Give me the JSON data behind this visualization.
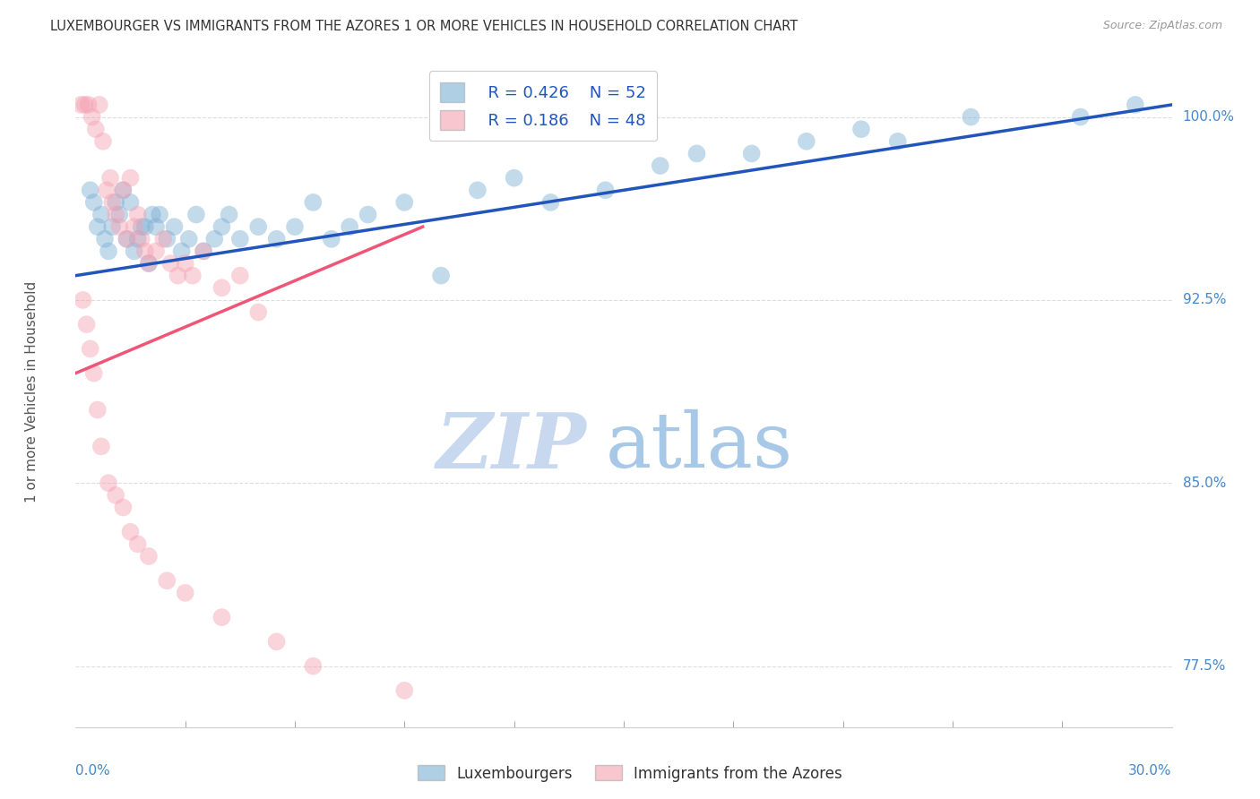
{
  "title": "LUXEMBOURGER VS IMMIGRANTS FROM THE AZORES 1 OR MORE VEHICLES IN HOUSEHOLD CORRELATION CHART",
  "source": "Source: ZipAtlas.com",
  "ylabel": "1 or more Vehicles in Household",
  "xlim": [
    0.0,
    30.0
  ],
  "ylim": [
    75.0,
    102.5
  ],
  "yticks": [
    77.5,
    85.0,
    92.5,
    100.0
  ],
  "ytick_labels": [
    "77.5%",
    "85.0%",
    "92.5%",
    "100.0%"
  ],
  "legend_blue_r": "R = 0.426",
  "legend_blue_n": "N = 52",
  "legend_pink_r": "R = 0.186",
  "legend_pink_n": "N = 48",
  "blue_color": "#7BAFD4",
  "pink_color": "#F4A0B0",
  "blue_line_color": "#2255BB",
  "pink_line_color": "#EE5577",
  "title_color": "#333333",
  "source_color": "#999999",
  "axis_label_color": "#555555",
  "tick_color": "#4488CC",
  "grid_color": "#DDDDDD",
  "watermark_zip_color": "#C8D8EE",
  "watermark_atlas_color": "#A8C8E8",
  "blue_dots_x": [
    0.4,
    0.5,
    0.6,
    0.7,
    0.8,
    0.9,
    1.0,
    1.1,
    1.2,
    1.3,
    1.4,
    1.5,
    1.6,
    1.7,
    1.8,
    1.9,
    2.0,
    2.1,
    2.2,
    2.3,
    2.5,
    2.7,
    2.9,
    3.1,
    3.3,
    3.5,
    3.8,
    4.0,
    4.2,
    4.5,
    5.0,
    5.5,
    6.0,
    6.5,
    7.0,
    7.5,
    8.0,
    9.0,
    10.0,
    11.0,
    12.0,
    13.0,
    14.5,
    16.0,
    17.0,
    18.5,
    20.0,
    21.5,
    22.5,
    24.5,
    27.5,
    29.0
  ],
  "blue_dots_y": [
    97.0,
    96.5,
    95.5,
    96.0,
    95.0,
    94.5,
    95.5,
    96.5,
    96.0,
    97.0,
    95.0,
    96.5,
    94.5,
    95.0,
    95.5,
    95.5,
    94.0,
    96.0,
    95.5,
    96.0,
    95.0,
    95.5,
    94.5,
    95.0,
    96.0,
    94.5,
    95.0,
    95.5,
    96.0,
    95.0,
    95.5,
    95.0,
    95.5,
    96.5,
    95.0,
    95.5,
    96.0,
    96.5,
    93.5,
    97.0,
    97.5,
    96.5,
    97.0,
    98.0,
    98.5,
    98.5,
    99.0,
    99.5,
    99.0,
    100.0,
    100.0,
    100.5
  ],
  "pink_dots_x": [
    0.15,
    0.25,
    0.35,
    0.45,
    0.55,
    0.65,
    0.75,
    0.85,
    0.95,
    1.0,
    1.1,
    1.2,
    1.3,
    1.4,
    1.5,
    1.6,
    1.7,
    1.8,
    1.9,
    2.0,
    2.2,
    2.4,
    2.6,
    2.8,
    3.0,
    3.2,
    3.5,
    4.0,
    4.5,
    5.0,
    0.2,
    0.3,
    0.4,
    0.5,
    0.6,
    0.7,
    0.9,
    1.1,
    1.3,
    1.5,
    1.7,
    2.0,
    2.5,
    3.0,
    4.0,
    5.5,
    6.5,
    9.0
  ],
  "pink_dots_y": [
    100.5,
    100.5,
    100.5,
    100.0,
    99.5,
    100.5,
    99.0,
    97.0,
    97.5,
    96.5,
    96.0,
    95.5,
    97.0,
    95.0,
    97.5,
    95.5,
    96.0,
    95.0,
    94.5,
    94.0,
    94.5,
    95.0,
    94.0,
    93.5,
    94.0,
    93.5,
    94.5,
    93.0,
    93.5,
    92.0,
    92.5,
    91.5,
    90.5,
    89.5,
    88.0,
    86.5,
    85.0,
    84.5,
    84.0,
    83.0,
    82.5,
    82.0,
    81.0,
    80.5,
    79.5,
    78.5,
    77.5,
    76.5
  ],
  "blue_trendline_x0": 0.0,
  "blue_trendline_x1": 30.0,
  "blue_trendline_y0": 93.5,
  "blue_trendline_y1": 100.5,
  "pink_trendline_x0": 0.0,
  "pink_trendline_x1": 9.5,
  "pink_trendline_y0": 89.5,
  "pink_trendline_y1": 95.5
}
